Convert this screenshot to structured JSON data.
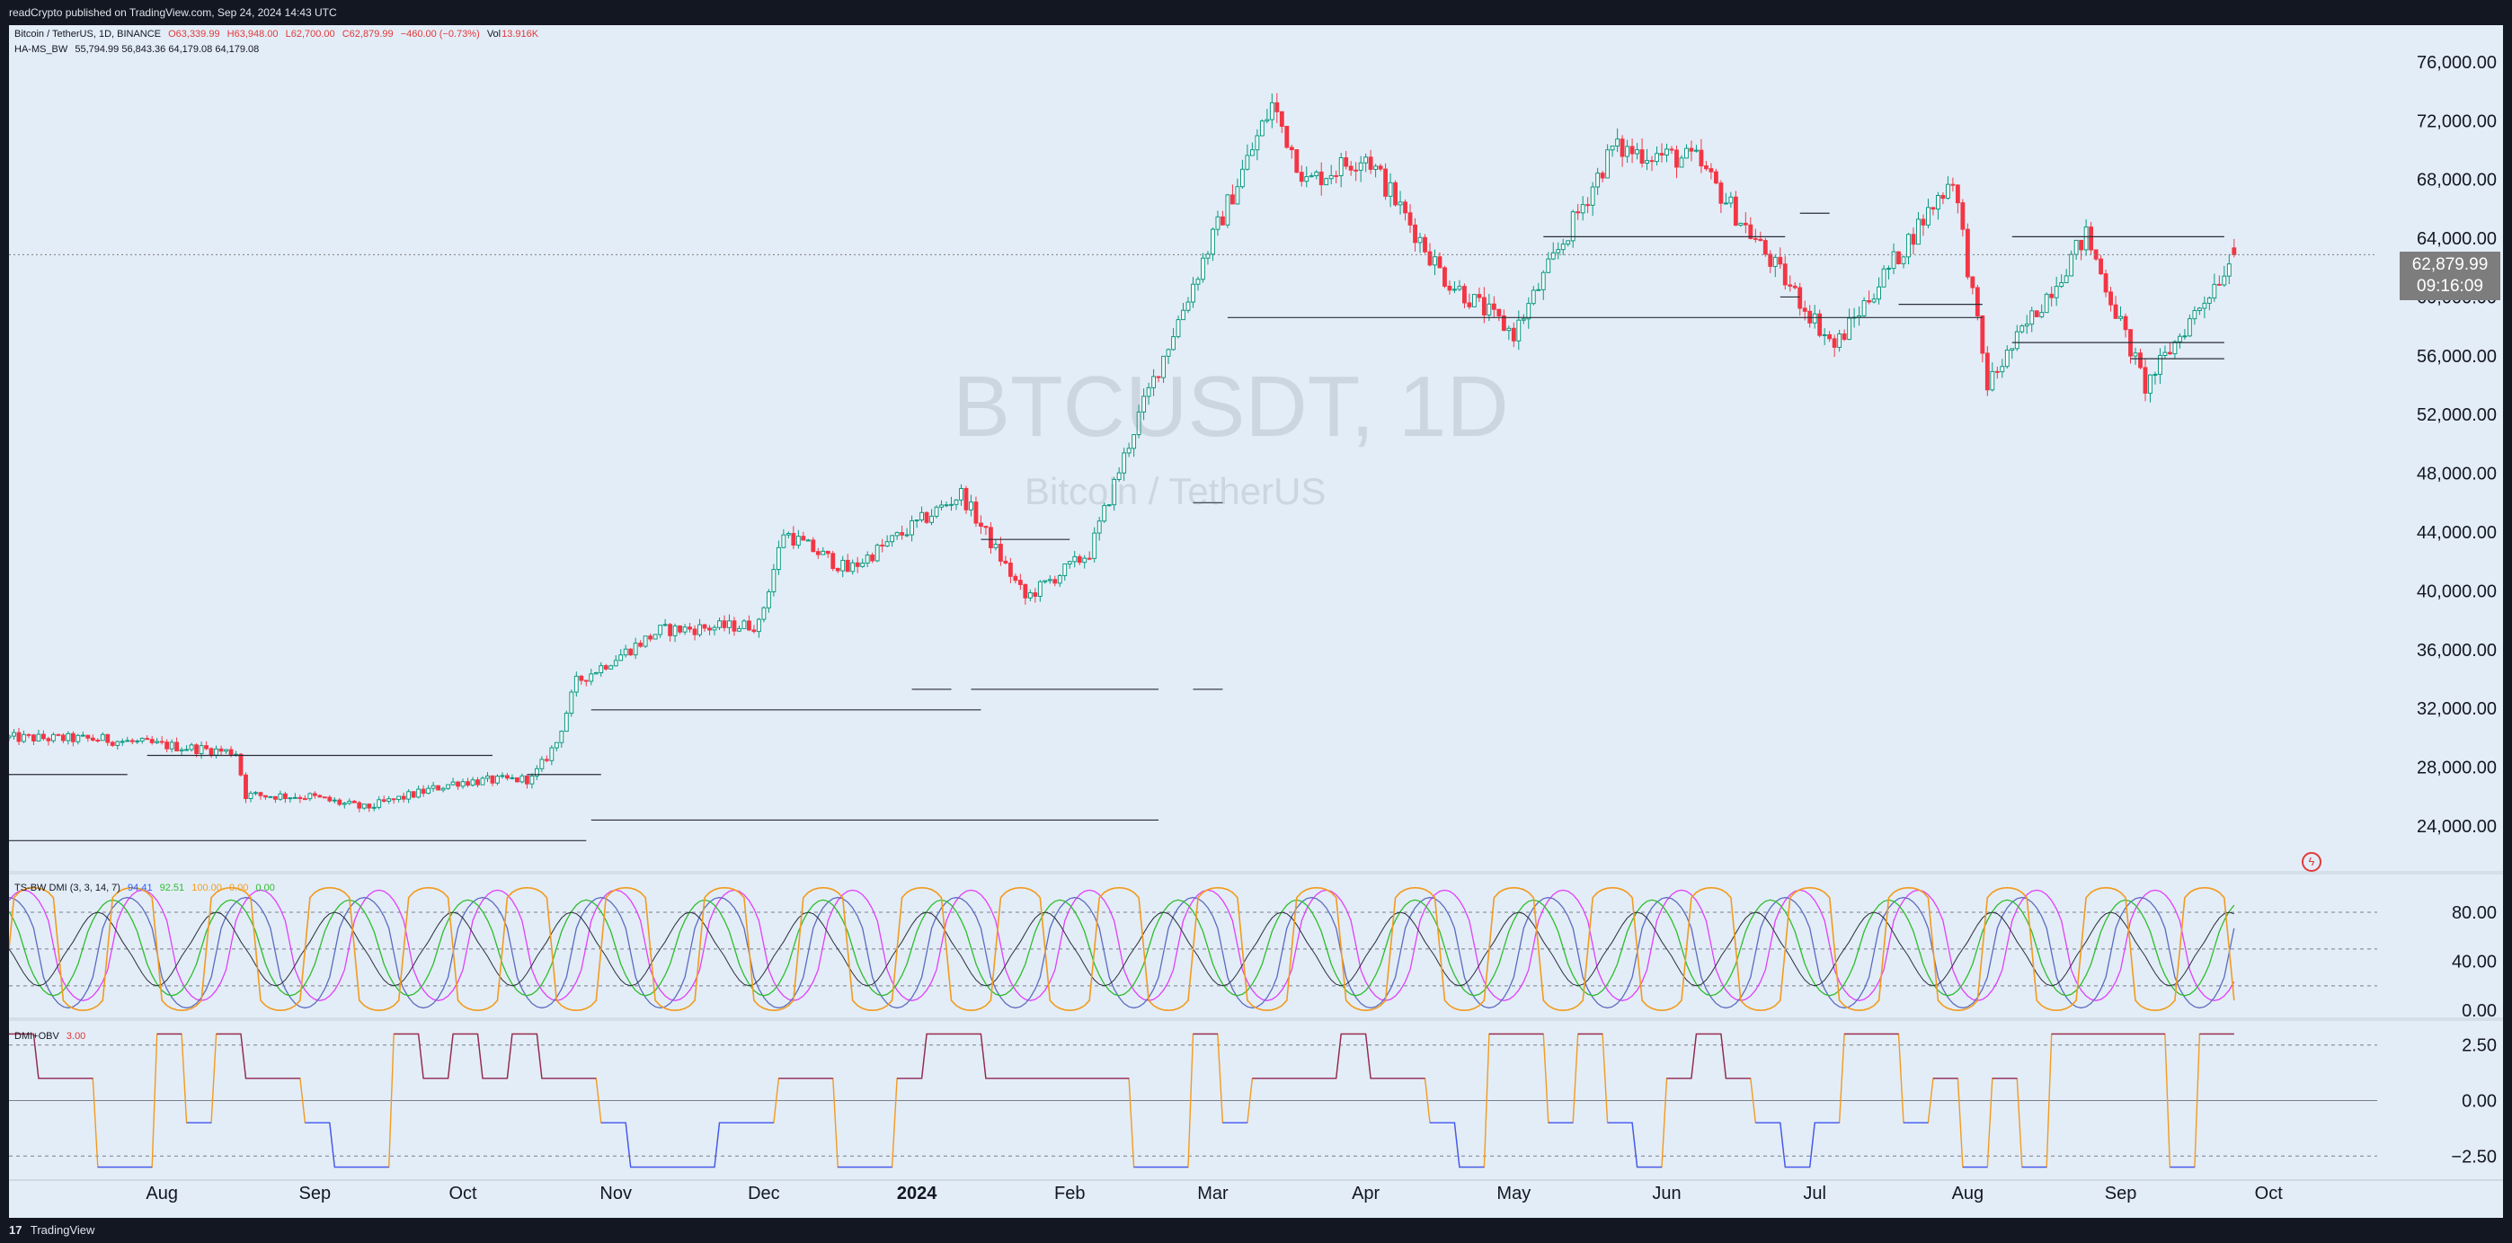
{
  "header": {
    "published": "readCrypto published on TradingView.com, Sep 24, 2024 14:43 UTC"
  },
  "footer": {
    "logo_text": "TradingView",
    "logo_mark": "17"
  },
  "legend_main": {
    "symbol": "Bitcoin / TetherUS, 1D, BINANCE",
    "open": "O63,339.99",
    "high": "H63,948.00",
    "low": "L62,700.00",
    "close": "C62,879.99",
    "change": "−460.00 (−0.73%)",
    "vol_label": "Vol",
    "vol_value": "13.916K"
  },
  "legend_hams": {
    "name": "HA-MS_BW",
    "values": "55,794.99  56,843.36  64,179.08  64,179.08"
  },
  "legend_dmi": {
    "name": "TS-BW DMI (3, 3, 14, 7)",
    "v1": "94.41",
    "v2": "92.51",
    "v3": "100.00",
    "v4": "0.00",
    "v5": "0.00"
  },
  "legend_obv": {
    "name": "DMI+OBV",
    "value": "3.00"
  },
  "watermark": {
    "title": "BTCUSDT, 1D",
    "subtitle": "Bitcoin / TetherUS"
  },
  "price_badge": {
    "price": "62,879.99",
    "countdown": "09:16:09"
  },
  "colors": {
    "up": "#089981",
    "down": "#f23645",
    "bg": "#e3edf7",
    "dmi_plus": "#e040fb",
    "dmi_minus": "#5c6bc0",
    "adx": "#2ebd2e",
    "orange": "#f29b1f"
  },
  "chart_data": [
    {
      "type": "candlestick",
      "symbol": "BTCUSDT",
      "interval": "1D",
      "ylim": [
        21000,
        78500
      ],
      "yticks": [
        {
          "value": 24000,
          "label": "24,000.00"
        },
        {
          "value": 28000,
          "label": "28,000.00"
        },
        {
          "value": 32000,
          "label": "32,000.00"
        },
        {
          "value": 36000,
          "label": "36,000.00"
        },
        {
          "value": 40000,
          "label": "40,000.00"
        },
        {
          "value": 44000,
          "label": "44,000.00"
        },
        {
          "value": 48000,
          "label": "48,000.00"
        },
        {
          "value": 52000,
          "label": "52,000.00"
        },
        {
          "value": 56000,
          "label": "56,000.00"
        },
        {
          "value": 60000,
          "label": "60,000.00"
        },
        {
          "value": 64000,
          "label": "64,000.00"
        },
        {
          "value": 68000,
          "label": "68,000.00"
        },
        {
          "value": 72000,
          "label": "72,000.00"
        },
        {
          "value": 76000,
          "label": "76,000.00"
        }
      ],
      "xticks": [
        {
          "date": "2023-08-01",
          "label": "Aug"
        },
        {
          "date": "2023-09-01",
          "label": "Sep"
        },
        {
          "date": "2023-10-01",
          "label": "Oct"
        },
        {
          "date": "2023-11-01",
          "label": "Nov"
        },
        {
          "date": "2023-12-01",
          "label": "Dec"
        },
        {
          "date": "2024-01-01",
          "label": "2024"
        },
        {
          "date": "2024-02-01",
          "label": "Feb"
        },
        {
          "date": "2024-03-01",
          "label": "Mar"
        },
        {
          "date": "2024-04-01",
          "label": "Apr"
        },
        {
          "date": "2024-05-01",
          "label": "May"
        },
        {
          "date": "2024-06-01",
          "label": "Jun"
        },
        {
          "date": "2024-07-01",
          "label": "Jul"
        },
        {
          "date": "2024-08-01",
          "label": "Aug"
        },
        {
          "date": "2024-09-01",
          "label": "Sep"
        },
        {
          "date": "2024-10-01",
          "label": "Oct"
        }
      ],
      "x_range": [
        "2023-07-01",
        "2024-10-23"
      ],
      "price_path": [
        {
          "date": "2023-07-01",
          "close": 30000
        },
        {
          "date": "2023-07-20",
          "close": 29900
        },
        {
          "date": "2023-08-16",
          "close": 29000
        },
        {
          "date": "2023-08-18",
          "close": 26100
        },
        {
          "date": "2023-08-31",
          "close": 26000
        },
        {
          "date": "2023-09-11",
          "close": 25200
        },
        {
          "date": "2023-09-30",
          "close": 27000
        },
        {
          "date": "2023-10-15",
          "close": 27200
        },
        {
          "date": "2023-10-20",
          "close": 29700
        },
        {
          "date": "2023-10-24",
          "close": 33800
        },
        {
          "date": "2023-11-10",
          "close": 37300
        },
        {
          "date": "2023-11-30",
          "close": 37700
        },
        {
          "date": "2023-12-05",
          "close": 44000
        },
        {
          "date": "2023-12-18",
          "close": 41400
        },
        {
          "date": "2024-01-10",
          "close": 46600
        },
        {
          "date": "2024-01-23",
          "close": 39500
        },
        {
          "date": "2024-02-05",
          "close": 42600
        },
        {
          "date": "2024-02-15",
          "close": 51900
        },
        {
          "date": "2024-02-28",
          "close": 62500
        },
        {
          "date": "2024-03-13",
          "close": 73100
        },
        {
          "date": "2024-03-20",
          "close": 67800
        },
        {
          "date": "2024-04-01",
          "close": 69700
        },
        {
          "date": "2024-04-17",
          "close": 61300
        },
        {
          "date": "2024-05-01",
          "close": 57500
        },
        {
          "date": "2024-05-21",
          "close": 70100
        },
        {
          "date": "2024-06-07",
          "close": 69300
        },
        {
          "date": "2024-07-05",
          "close": 56600
        },
        {
          "date": "2024-07-29",
          "close": 68200
        },
        {
          "date": "2024-08-05",
          "close": 54000
        },
        {
          "date": "2024-08-25",
          "close": 64200
        },
        {
          "date": "2024-09-06",
          "close": 53900
        },
        {
          "date": "2024-09-24",
          "close": 62880
        }
      ],
      "levels": [
        {
          "price": 27500,
          "from": "2023-07-01",
          "to": "2023-07-25"
        },
        {
          "price": 28800,
          "from": "2023-07-29",
          "to": "2023-10-07"
        },
        {
          "price": 27500,
          "from": "2023-10-14",
          "to": "2023-10-29"
        },
        {
          "price": 23000,
          "from": "2023-07-01",
          "to": "2023-10-26"
        },
        {
          "price": 31900,
          "from": "2023-10-27",
          "to": "2024-01-14"
        },
        {
          "price": 33300,
          "from": "2023-12-31",
          "to": "2024-01-08"
        },
        {
          "price": 33300,
          "from": "2024-01-12",
          "to": "2024-02-19"
        },
        {
          "price": 33300,
          "from": "2024-02-26",
          "to": "2024-03-03"
        },
        {
          "price": 24400,
          "from": "2023-10-27",
          "to": "2024-02-19"
        },
        {
          "price": 43500,
          "from": "2024-01-14",
          "to": "2024-02-01"
        },
        {
          "price": 46000,
          "from": "2024-02-26",
          "to": "2024-03-03"
        },
        {
          "price": 58600,
          "from": "2024-03-04",
          "to": "2024-08-04"
        },
        {
          "price": 64100,
          "from": "2024-05-07",
          "to": "2024-06-25"
        },
        {
          "price": 65700,
          "from": "2024-06-28",
          "to": "2024-07-04"
        },
        {
          "price": 59500,
          "from": "2024-07-18",
          "to": "2024-08-04"
        },
        {
          "price": 64100,
          "from": "2024-08-10",
          "to": "2024-09-22"
        },
        {
          "price": 56900,
          "from": "2024-08-10",
          "to": "2024-09-22"
        },
        {
          "price": 55800,
          "from": "2024-09-03",
          "to": "2024-09-22"
        },
        {
          "price": 60000,
          "from": "2024-06-24",
          "to": "2024-06-28"
        }
      ],
      "last_price": 62879.99
    },
    {
      "type": "line",
      "name": "TS-BW DMI (3, 3, 14, 7)",
      "ylim": [
        -5,
        110
      ],
      "yticks": [
        {
          "value": 0,
          "label": "0.00"
        },
        {
          "value": 40,
          "label": "40.00"
        },
        {
          "value": 80,
          "label": "80.00"
        }
      ],
      "dashed_levels": [
        80,
        50,
        20
      ]
    },
    {
      "type": "line",
      "name": "DMI+OBV",
      "ylim": [
        -3.5,
        3.5
      ],
      "yticks": [
        {
          "value": 2.5,
          "label": "2.50"
        },
        {
          "value": 0,
          "label": "0.00"
        },
        {
          "value": -2.5,
          "label": "−2.50"
        }
      ],
      "dashed_levels": [
        2.5,
        0,
        -2.5
      ]
    }
  ]
}
